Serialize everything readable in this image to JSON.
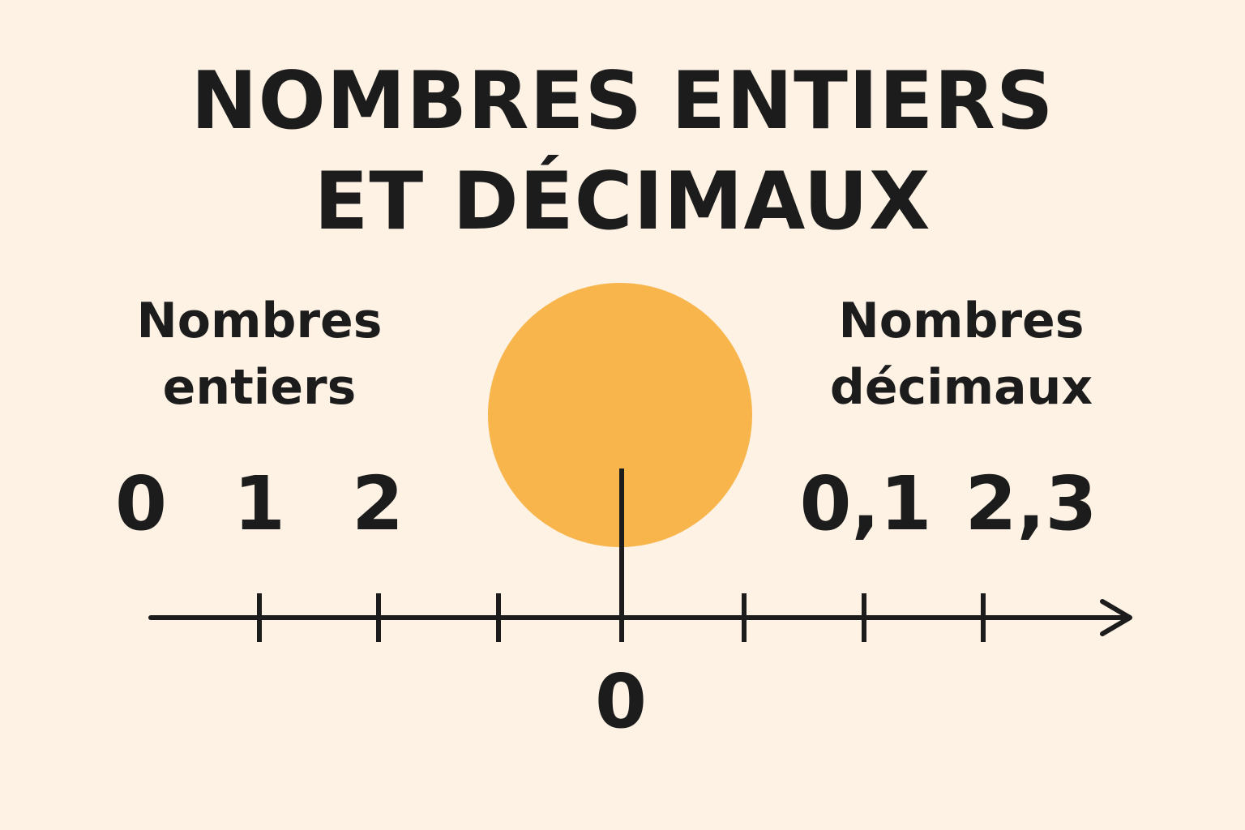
{
  "title": {
    "line1": "NOMBRES ENTIERS",
    "line2": "ET DÉCIMAUX"
  },
  "left_group": {
    "label_line1": "Nombres",
    "label_line2": "entiers",
    "numbers": [
      "0",
      "1",
      "2"
    ]
  },
  "right_group": {
    "label_line1": "Nombres",
    "label_line2": "décimaux",
    "numbers": [
      "0,1",
      "2,3"
    ]
  },
  "number_line": {
    "origin_label": "0"
  },
  "colors": {
    "background": "#fdf2e3",
    "circle": "#f8b54c",
    "ink": "#1c1c1c"
  }
}
